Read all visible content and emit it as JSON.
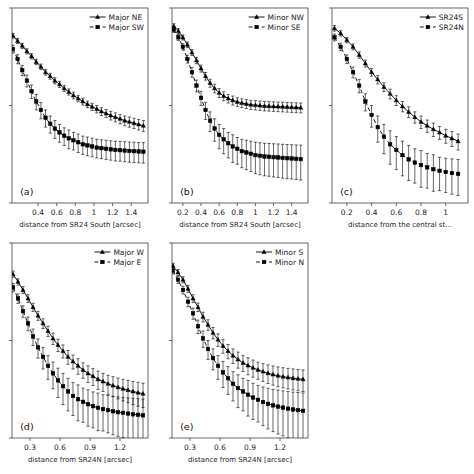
{
  "chart_data": [
    {
      "type": "line",
      "xlabel": "distance from SR24 South [arcsec]",
      "annotation": "(a)",
      "log": "y",
      "grid": false,
      "legend": "top-right",
      "tick_labels": "x",
      "xlim": [
        0.12,
        1.58
      ],
      "xticks": [
        0.4,
        0.6,
        0.8,
        1,
        1.2,
        1.4
      ],
      "ylim": [
        1,
        100
      ],
      "yticks": [
        1,
        10,
        100
      ],
      "x": [
        0.13,
        0.18,
        0.23,
        0.28,
        0.33,
        0.38,
        0.43,
        0.48,
        0.53,
        0.58,
        0.63,
        0.68,
        0.73,
        0.78,
        0.83,
        0.88,
        0.93,
        0.98,
        1.03,
        1.08,
        1.13,
        1.18,
        1.23,
        1.28,
        1.33,
        1.38,
        1.43,
        1.48,
        1.53
      ],
      "series": [
        {
          "name": "Major NE",
          "color": "#000000",
          "marker": "triangle",
          "line_style": "solid",
          "values": [
            52,
            46,
            41,
            36,
            32,
            28,
            25,
            22,
            20,
            18,
            16.5,
            15,
            13.8,
            12.7,
            11.8,
            11.0,
            10.3,
            9.7,
            9.2,
            8.7,
            8.3,
            7.9,
            7.6,
            7.3,
            7.0,
            6.8,
            6.6,
            6.4,
            6.2
          ],
          "errors": [
            3,
            2.8,
            2.5,
            2.2,
            2.0,
            1.8,
            1.6,
            1.5,
            1.4,
            1.3,
            1.2,
            1.1,
            1.0,
            1.0,
            0.9,
            0.9,
            0.8,
            0.8,
            0.8,
            0.8,
            0.8,
            0.8,
            0.8,
            0.8,
            0.8,
            0.8,
            0.8,
            0.8,
            0.8
          ]
        },
        {
          "name": "Major SW",
          "color": "#000000",
          "marker": "square",
          "line_style": "dashed",
          "values": [
            38,
            30,
            23,
            18,
            14,
            11,
            9.0,
            7.5,
            6.5,
            5.8,
            5.3,
            4.9,
            4.6,
            4.4,
            4.2,
            4.0,
            3.9,
            3.8,
            3.7,
            3.65,
            3.6,
            3.55,
            3.5,
            3.48,
            3.45,
            3.42,
            3.4,
            3.38,
            3.36
          ],
          "errors": [
            3.5,
            3.2,
            2.8,
            2.5,
            2.2,
            2.0,
            1.7,
            1.5,
            1.3,
            1.2,
            1.1,
            1.0,
            1.0,
            0.9,
            0.9,
            0.85,
            0.85,
            0.82,
            0.8,
            0.8,
            0.8,
            0.8,
            0.8,
            0.8,
            0.8,
            0.8,
            0.8,
            0.8,
            0.8
          ]
        }
      ]
    },
    {
      "type": "line",
      "xlabel": "distance from SR24 South [arcsec]",
      "annotation": "(b)",
      "log": "y",
      "grid": false,
      "legend": "top-right",
      "tick_labels": "x",
      "xlim": [
        0.08,
        1.58
      ],
      "xticks": [
        0.2,
        0.4,
        0.6,
        0.8,
        1,
        1.2,
        1.4
      ],
      "ylim": [
        1,
        100
      ],
      "yticks": [
        1,
        10,
        100
      ],
      "x": [
        0.1,
        0.15,
        0.2,
        0.25,
        0.3,
        0.35,
        0.4,
        0.45,
        0.5,
        0.55,
        0.6,
        0.65,
        0.7,
        0.75,
        0.8,
        0.85,
        0.9,
        0.95,
        1.0,
        1.05,
        1.1,
        1.15,
        1.2,
        1.25,
        1.3,
        1.35,
        1.4,
        1.45,
        1.5
      ],
      "series": [
        {
          "name": "Minor NW",
          "color": "#000000",
          "marker": "triangle",
          "line_style": "solid",
          "values": [
            65,
            58,
            50,
            42,
            35,
            29,
            24,
            20,
            17,
            15,
            13.5,
            12.5,
            11.8,
            11.3,
            10.9,
            10.6,
            10.4,
            10.2,
            10.1,
            10.0,
            9.9,
            9.85,
            9.8,
            9.75,
            9.7,
            9.65,
            9.6,
            9.55,
            9.5
          ],
          "errors": [
            4,
            3.5,
            3.0,
            2.8,
            2.5,
            2.2,
            2.0,
            1.8,
            1.6,
            1.5,
            1.4,
            1.3,
            1.2,
            1.2,
            1.1,
            1.1,
            1.1,
            1.1,
            1.1,
            1.1,
            1.1,
            1.1,
            1.1,
            1.1,
            1.1,
            1.1,
            1.1,
            1.1,
            1.1
          ]
        },
        {
          "name": "Minor SE",
          "color": "#000000",
          "marker": "square",
          "line_style": "dashed",
          "values": [
            60,
            50,
            40,
            30,
            22,
            16,
            12,
            9.0,
            7.0,
            5.8,
            5.0,
            4.5,
            4.1,
            3.8,
            3.6,
            3.4,
            3.3,
            3.2,
            3.1,
            3.05,
            3.0,
            2.98,
            2.95,
            2.93,
            2.9,
            2.88,
            2.86,
            2.84,
            2.82
          ],
          "errors": [
            4,
            3.5,
            3.0,
            2.8,
            2.5,
            2.2,
            2.0,
            1.8,
            1.6,
            1.5,
            1.4,
            1.3,
            1.2,
            1.2,
            1.1,
            1.1,
            1.1,
            1.1,
            1.1,
            1.1,
            1.1,
            1.1,
            1.1,
            1.1,
            1.1,
            1.1,
            1.1,
            1.1,
            1.1
          ]
        }
      ]
    },
    {
      "type": "line",
      "xlabel": "distance from the central st...",
      "annotation": "(c)",
      "log": "y",
      "grid": false,
      "legend": "top-right",
      "tick_labels": "x",
      "xlim": [
        0.08,
        1.18
      ],
      "xticks": [
        0.2,
        0.4,
        0.6,
        0.8,
        1
      ],
      "ylim": [
        1,
        100
      ],
      "yticks": [
        1,
        10,
        100
      ],
      "x": [
        0.1,
        0.15,
        0.2,
        0.25,
        0.3,
        0.35,
        0.4,
        0.45,
        0.5,
        0.55,
        0.6,
        0.65,
        0.7,
        0.75,
        0.8,
        0.85,
        0.9,
        0.95,
        1.0,
        1.05,
        1.1
      ],
      "series": [
        {
          "name": "SR24S",
          "color": "#000000",
          "marker": "triangle",
          "line_style": "solid",
          "values": [
            62,
            55,
            47,
            40,
            33,
            27,
            22,
            18.5,
            15.5,
            13.2,
            11.3,
            9.8,
            8.6,
            7.6,
            6.8,
            6.2,
            5.7,
            5.3,
            4.9,
            4.6,
            4.3
          ],
          "errors": [
            4,
            3.5,
            3.0,
            2.8,
            2.5,
            2.2,
            2.0,
            1.8,
            1.6,
            1.5,
            1.3,
            1.2,
            1.1,
            1.0,
            1.0,
            0.9,
            0.9,
            0.8,
            0.8,
            0.8,
            0.8
          ]
        },
        {
          "name": "SR24N",
          "color": "#000000",
          "marker": "square",
          "line_style": "dashed",
          "values": [
            50,
            40,
            30,
            22,
            16,
            11,
            8.0,
            6.0,
            4.8,
            4.0,
            3.5,
            3.1,
            2.8,
            2.6,
            2.45,
            2.32,
            2.22,
            2.14,
            2.08,
            2.03,
            1.99
          ],
          "errors": [
            4,
            3.5,
            3.0,
            2.8,
            2.5,
            2.2,
            2.0,
            1.8,
            1.6,
            1.5,
            1.3,
            1.2,
            1.1,
            1.0,
            1.0,
            0.9,
            0.9,
            0.8,
            0.8,
            0.8,
            0.8
          ]
        }
      ]
    },
    {
      "type": "line",
      "xlabel": "distance from SR24N [arcsec]",
      "annotation": "(d)",
      "log": "y",
      "grid": false,
      "legend": "top-right",
      "tick_labels": "x",
      "xlim": [
        0.12,
        1.48
      ],
      "xticks": [
        0.3,
        0.6,
        0.9,
        1.2
      ],
      "ylim": [
        1,
        100
      ],
      "yticks": [
        1,
        10,
        100
      ],
      "x": [
        0.13,
        0.18,
        0.23,
        0.28,
        0.33,
        0.38,
        0.43,
        0.48,
        0.53,
        0.58,
        0.63,
        0.68,
        0.73,
        0.78,
        0.83,
        0.88,
        0.93,
        0.98,
        1.03,
        1.08,
        1.13,
        1.18,
        1.23,
        1.28,
        1.33,
        1.38,
        1.43
      ],
      "series": [
        {
          "name": "Major W",
          "color": "#000000",
          "marker": "triangle",
          "line_style": "solid",
          "values": [
            48,
            40,
            33,
            27,
            22,
            18,
            15,
            12.5,
            10.5,
            9.0,
            7.8,
            6.8,
            6.1,
            5.5,
            5.0,
            4.6,
            4.3,
            4.0,
            3.8,
            3.6,
            3.45,
            3.32,
            3.2,
            3.1,
            3.0,
            2.92,
            2.85
          ],
          "errors": [
            3.5,
            3.0,
            2.7,
            2.4,
            2.1,
            1.9,
            1.7,
            1.5,
            1.4,
            1.3,
            1.2,
            1.1,
            1.0,
            1.0,
            0.9,
            0.9,
            0.85,
            0.85,
            0.8,
            0.8,
            0.8,
            0.8,
            0.8,
            0.8,
            0.8,
            0.8,
            0.8
          ]
        },
        {
          "name": "Major E",
          "color": "#000000",
          "marker": "square",
          "line_style": "dashed",
          "values": [
            35,
            27,
            20,
            15,
            11,
            8.5,
            6.8,
            5.5,
            4.6,
            3.9,
            3.4,
            3.0,
            2.7,
            2.5,
            2.35,
            2.22,
            2.12,
            2.04,
            1.98,
            1.93,
            1.88,
            1.84,
            1.81,
            1.78,
            1.75,
            1.73,
            1.71
          ],
          "errors": [
            3.5,
            3.0,
            2.7,
            2.4,
            2.1,
            1.9,
            1.7,
            1.5,
            1.4,
            1.3,
            1.2,
            1.1,
            1.0,
            1.0,
            0.9,
            0.9,
            0.85,
            0.85,
            0.8,
            0.8,
            0.8,
            0.8,
            0.8,
            0.8,
            0.8,
            0.8,
            0.8
          ]
        }
      ]
    },
    {
      "type": "line",
      "xlabel": "distance from SR24N [arcsec]",
      "annotation": "(e)",
      "log": "y",
      "grid": false,
      "legend": "top-right",
      "tick_labels": "x",
      "xlim": [
        0.12,
        1.48
      ],
      "xticks": [
        0.3,
        0.6,
        0.9,
        1.2
      ],
      "ylim": [
        1,
        100
      ],
      "yticks": [
        1,
        10,
        100
      ],
      "x": [
        0.13,
        0.18,
        0.23,
        0.28,
        0.33,
        0.38,
        0.43,
        0.48,
        0.53,
        0.58,
        0.63,
        0.68,
        0.73,
        0.78,
        0.83,
        0.88,
        0.93,
        0.98,
        1.03,
        1.08,
        1.13,
        1.18,
        1.23,
        1.28,
        1.33,
        1.38,
        1.43
      ],
      "series": [
        {
          "name": "Minor S",
          "color": "#000000",
          "marker": "triangle",
          "line_style": "solid",
          "values": [
            58,
            50,
            42,
            34,
            27,
            22,
            17.5,
            14.5,
            12,
            10.2,
            8.8,
            7.8,
            7.0,
            6.4,
            5.9,
            5.55,
            5.25,
            5.0,
            4.8,
            4.62,
            4.48,
            4.36,
            4.26,
            4.18,
            4.11,
            4.05,
            4.0
          ],
          "errors": [
            4,
            3.5,
            3.0,
            2.8,
            2.5,
            2.2,
            2.0,
            1.8,
            1.6,
            1.5,
            1.4,
            1.3,
            1.2,
            1.2,
            1.1,
            1.1,
            1.05,
            1.0,
            1.0,
            1.0,
            1.0,
            1.0,
            1.0,
            1.0,
            1.0,
            1.0,
            1.0
          ]
        },
        {
          "name": "Minor N",
          "color": "#000000",
          "marker": "square",
          "line_style": "dashed",
          "values": [
            52,
            42,
            33,
            25,
            19,
            14,
            10.5,
            8.2,
            6.6,
            5.5,
            4.7,
            4.1,
            3.6,
            3.25,
            3.0,
            2.78,
            2.6,
            2.46,
            2.34,
            2.24,
            2.16,
            2.1,
            2.05,
            2.0,
            1.96,
            1.93,
            1.9
          ],
          "errors": [
            4,
            3.5,
            3.0,
            2.8,
            2.5,
            2.2,
            2.0,
            1.8,
            1.6,
            1.5,
            1.4,
            1.3,
            1.2,
            1.2,
            1.1,
            1.1,
            1.05,
            1.0,
            1.0,
            1.0,
            1.0,
            1.0,
            1.0,
            1.0,
            1.0,
            1.0,
            1.0
          ]
        }
      ]
    }
  ]
}
